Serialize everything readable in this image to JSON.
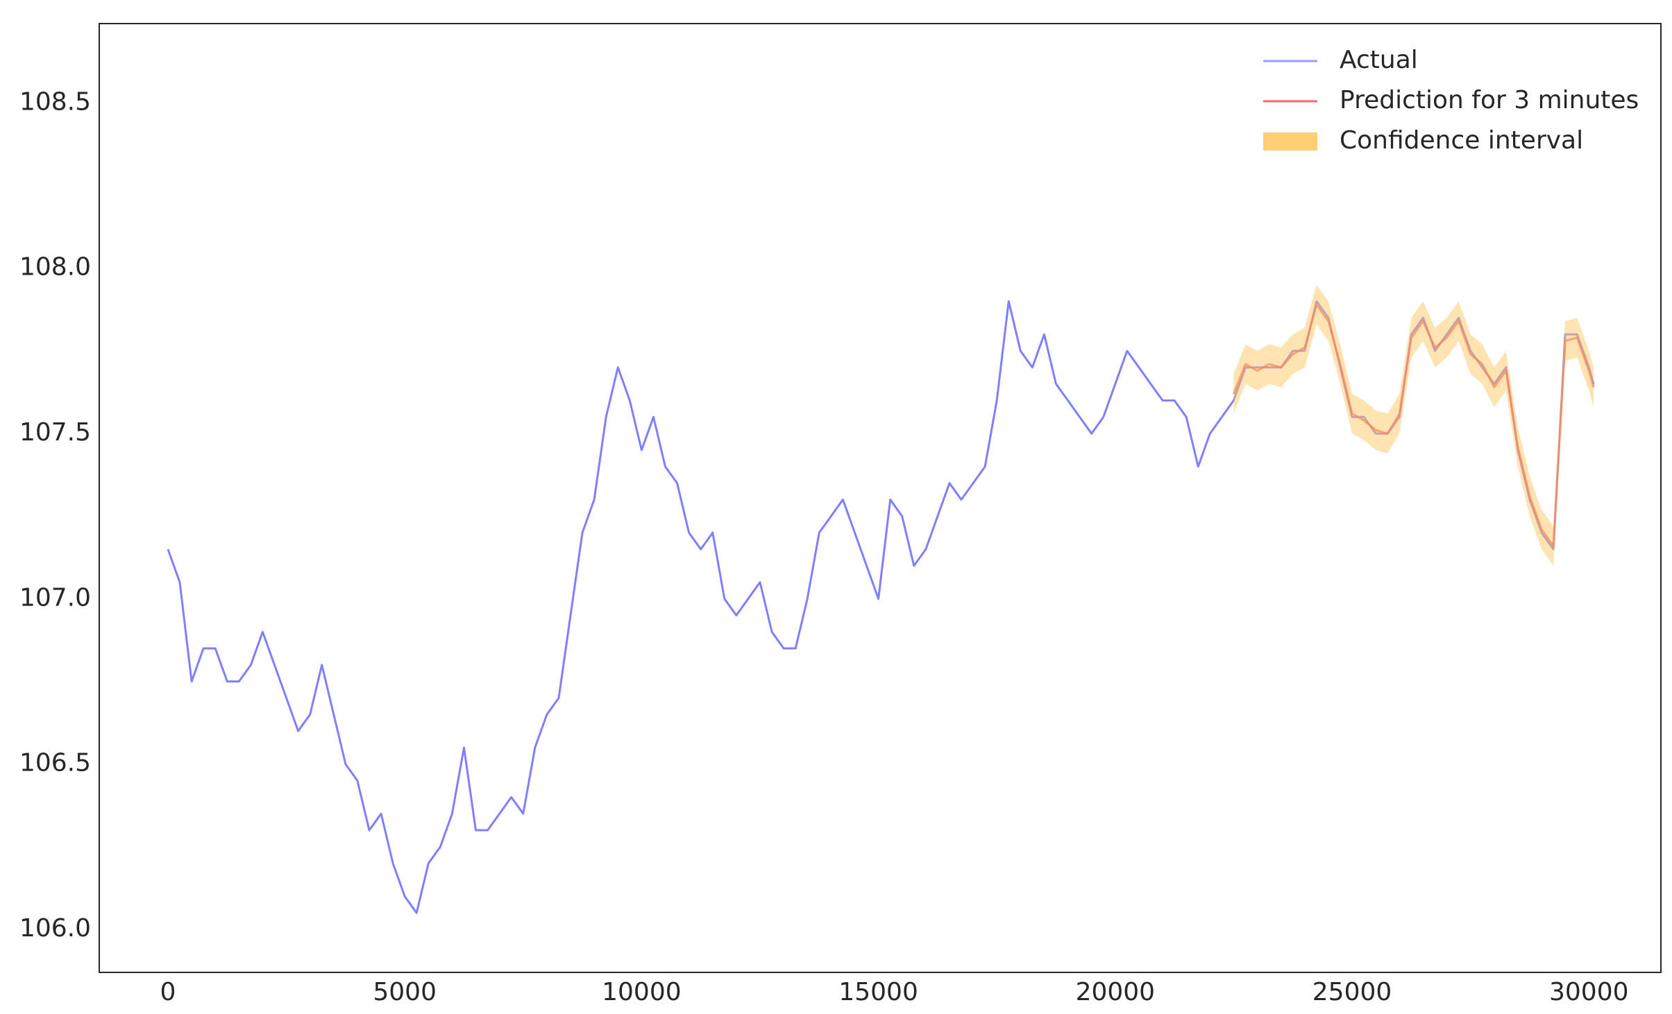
{
  "chart_data": {
    "type": "line",
    "legend": "upper right",
    "grid": false,
    "xlim": [
      -1450,
      31520
    ],
    "ylim": [
      105.87,
      108.74
    ],
    "xticks": [
      0,
      5000,
      10000,
      15000,
      20000,
      25000,
      30000
    ],
    "yticks": [
      {
        "value": 106,
        "label": "106.0"
      },
      106.5,
      {
        "value": 107,
        "label": "107.0"
      },
      107.5,
      {
        "value": 108,
        "label": "108.0"
      },
      108.5
    ],
    "x": [
      0,
      250,
      500,
      750,
      1000,
      1250,
      1500,
      1750,
      2000,
      2250,
      2500,
      2750,
      3000,
      3250,
      3500,
      3750,
      4000,
      4250,
      4500,
      4750,
      5000,
      5250,
      5500,
      5750,
      6000,
      6250,
      6500,
      6750,
      7000,
      7250,
      7500,
      7750,
      8000,
      8250,
      8500,
      8750,
      9000,
      9250,
      9500,
      9750,
      10000,
      10250,
      10500,
      10750,
      11000,
      11250,
      11500,
      11750,
      12000,
      12250,
      12500,
      12750,
      13000,
      13250,
      13500,
      13750,
      14000,
      14250,
      14500,
      14750,
      15000,
      15250,
      15500,
      15750,
      16000,
      16250,
      16500,
      16750,
      17000,
      17250,
      17500,
      17750,
      18000,
      18250,
      18500,
      18750,
      19000,
      19250,
      19500,
      19750,
      20000,
      20250,
      20500,
      20750,
      21000,
      21250,
      21500,
      21750,
      22000,
      22250,
      22500,
      22750,
      23000,
      23250,
      23500,
      23750,
      24000,
      24250,
      24500,
      24750,
      25000,
      25250,
      25500,
      25750,
      26000,
      26250,
      26500,
      26750,
      27000,
      27250,
      27500,
      27750,
      28000,
      28250,
      28500,
      28750,
      29000,
      29250,
      29500,
      29750,
      30000,
      30100
    ],
    "series": [
      {
        "name": "Actual",
        "color": "#7f7fff",
        "values": [
          107.15,
          107.05,
          106.75,
          106.85,
          106.85,
          106.75,
          106.75,
          106.8,
          106.9,
          106.8,
          106.7,
          106.6,
          106.65,
          106.8,
          106.65,
          106.5,
          106.45,
          106.3,
          106.35,
          106.2,
          106.1,
          106.05,
          106.2,
          106.25,
          106.35,
          106.55,
          106.3,
          106.3,
          106.35,
          106.4,
          106.35,
          106.55,
          106.65,
          106.7,
          106.95,
          107.2,
          107.3,
          107.55,
          107.7,
          107.6,
          107.45,
          107.55,
          107.4,
          107.35,
          107.2,
          107.15,
          107.2,
          107.0,
          106.95,
          107.0,
          107.05,
          106.9,
          106.85,
          106.85,
          107.0,
          107.2,
          107.25,
          107.3,
          107.2,
          107.1,
          107.0,
          107.3,
          107.25,
          107.1,
          107.15,
          107.25,
          107.35,
          107.3,
          107.35,
          107.4,
          107.6,
          107.9,
          107.75,
          107.7,
          107.8,
          107.65,
          107.6,
          107.55,
          107.5,
          107.55,
          107.65,
          107.75,
          107.7,
          107.65,
          107.6,
          107.6,
          107.55,
          107.4,
          107.5,
          107.55,
          107.6,
          107.7,
          107.7,
          107.7,
          107.7,
          107.75,
          107.75,
          107.9,
          107.85,
          107.7,
          107.55,
          107.55,
          107.5,
          107.5,
          107.55,
          107.8,
          107.85,
          107.75,
          107.8,
          107.85,
          107.75,
          107.7,
          107.65,
          107.7,
          107.45,
          107.3,
          107.2,
          107.15,
          107.8,
          107.8,
          107.7,
          107.65
        ]
      },
      {
        "name": "Prediction for 3 minutes",
        "color": "#ff4040",
        "values": [
          null,
          null,
          null,
          null,
          null,
          null,
          null,
          null,
          null,
          null,
          null,
          null,
          null,
          null,
          null,
          null,
          null,
          null,
          null,
          null,
          null,
          null,
          null,
          null,
          null,
          null,
          null,
          null,
          null,
          null,
          null,
          null,
          null,
          null,
          null,
          null,
          null,
          null,
          null,
          null,
          null,
          null,
          null,
          null,
          null,
          null,
          null,
          null,
          null,
          null,
          null,
          null,
          null,
          null,
          null,
          null,
          null,
          null,
          null,
          null,
          null,
          null,
          null,
          null,
          null,
          null,
          null,
          null,
          null,
          null,
          null,
          null,
          null,
          null,
          null,
          null,
          null,
          null,
          null,
          null,
          null,
          null,
          null,
          null,
          null,
          null,
          null,
          null,
          null,
          null,
          107.62,
          107.71,
          107.69,
          107.71,
          107.7,
          107.74,
          107.76,
          107.89,
          107.84,
          107.71,
          107.56,
          107.54,
          107.51,
          107.5,
          107.56,
          107.79,
          107.84,
          107.76,
          107.79,
          107.84,
          107.74,
          107.71,
          107.64,
          107.69,
          107.46,
          107.31,
          107.21,
          107.16,
          107.78,
          107.79,
          107.69,
          107.64
        ]
      },
      {
        "name": "Confidence interval",
        "color": "#ffc864",
        "lower": [
          null,
          null,
          null,
          null,
          null,
          null,
          null,
          null,
          null,
          null,
          null,
          null,
          null,
          null,
          null,
          null,
          null,
          null,
          null,
          null,
          null,
          null,
          null,
          null,
          null,
          null,
          null,
          null,
          null,
          null,
          null,
          null,
          null,
          null,
          null,
          null,
          null,
          null,
          null,
          null,
          null,
          null,
          null,
          null,
          null,
          null,
          null,
          null,
          null,
          null,
          null,
          null,
          null,
          null,
          null,
          null,
          null,
          null,
          null,
          null,
          null,
          null,
          null,
          null,
          null,
          null,
          null,
          null,
          null,
          null,
          null,
          null,
          null,
          null,
          null,
          null,
          null,
          null,
          null,
          null,
          null,
          null,
          null,
          null,
          null,
          null,
          null,
          null,
          null,
          null,
          107.56,
          107.65,
          107.63,
          107.65,
          107.64,
          107.68,
          107.7,
          107.83,
          107.78,
          107.65,
          107.5,
          107.48,
          107.45,
          107.44,
          107.5,
          107.73,
          107.78,
          107.7,
          107.73,
          107.78,
          107.68,
          107.65,
          107.58,
          107.63,
          107.4,
          107.25,
          107.15,
          107.1,
          107.72,
          107.73,
          107.63,
          107.58
        ],
        "upper": [
          null,
          null,
          null,
          null,
          null,
          null,
          null,
          null,
          null,
          null,
          null,
          null,
          null,
          null,
          null,
          null,
          null,
          null,
          null,
          null,
          null,
          null,
          null,
          null,
          null,
          null,
          null,
          null,
          null,
          null,
          null,
          null,
          null,
          null,
          null,
          null,
          null,
          null,
          null,
          null,
          null,
          null,
          null,
          null,
          null,
          null,
          null,
          null,
          null,
          null,
          null,
          null,
          null,
          null,
          null,
          null,
          null,
          null,
          null,
          null,
          null,
          null,
          null,
          null,
          null,
          null,
          null,
          null,
          null,
          null,
          null,
          null,
          null,
          null,
          null,
          null,
          null,
          null,
          null,
          null,
          null,
          null,
          null,
          null,
          null,
          null,
          null,
          null,
          null,
          null,
          107.68,
          107.77,
          107.75,
          107.77,
          107.76,
          107.8,
          107.82,
          107.95,
          107.9,
          107.77,
          107.62,
          107.6,
          107.57,
          107.56,
          107.62,
          107.85,
          107.9,
          107.82,
          107.85,
          107.9,
          107.8,
          107.77,
          107.7,
          107.75,
          107.52,
          107.37,
          107.27,
          107.22,
          107.84,
          107.85,
          107.75,
          107.7
        ]
      }
    ]
  }
}
